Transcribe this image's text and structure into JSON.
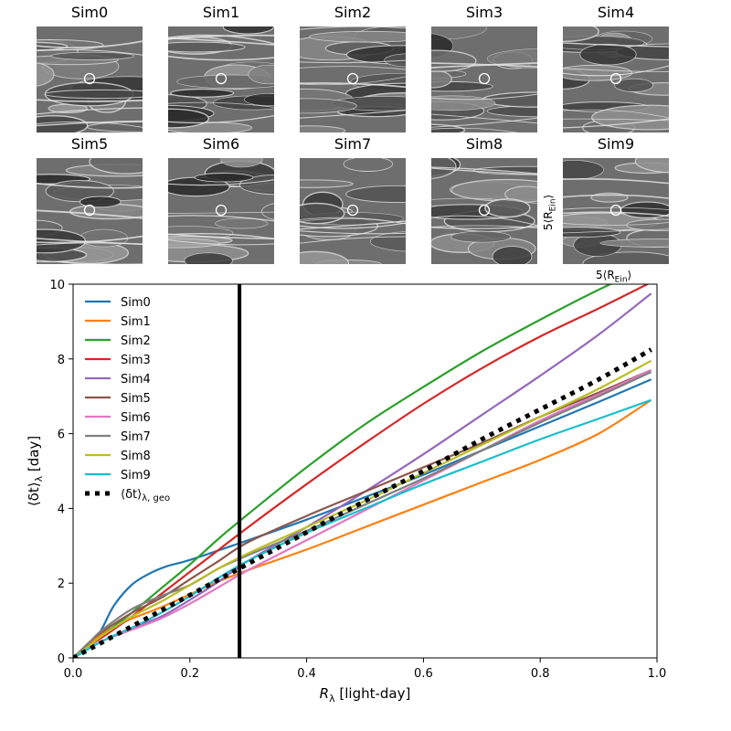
{
  "panels": {
    "titles": [
      "Sim0",
      "Sim1",
      "Sim2",
      "Sim3",
      "Sim4",
      "Sim5",
      "Sim6",
      "Sim7",
      "Sim8",
      "Sim9"
    ],
    "scale_vertical": "5⟨R",
    "scale_vertical_sub": "Ein",
    "scale_vertical_end": "⟩",
    "scale_horizontal": "5⟨R",
    "scale_horizontal_sub": "Ein",
    "scale_horizontal_end": "⟩"
  },
  "chart_data": {
    "type": "line",
    "xlabel_main": "R",
    "xlabel_sub": "λ",
    "xlabel_rest": " [light-day]",
    "ylabel_main": "⟨δt⟩",
    "ylabel_sub": "λ",
    "ylabel_rest": " [day]",
    "xlim": [
      0.0,
      1.0
    ],
    "ylim": [
      0,
      10
    ],
    "xticks": [
      "0.0",
      "0.2",
      "0.4",
      "0.6",
      "0.8",
      "1.0"
    ],
    "yticks": [
      "0",
      "2",
      "4",
      "6",
      "8",
      "10"
    ],
    "vline_x": 0.285,
    "legend_position": "top-left",
    "series": [
      {
        "name": "Sim0",
        "color": "#1f77b4",
        "x": [
          0,
          0.03,
          0.05,
          0.07,
          0.1,
          0.13,
          0.16,
          0.2,
          0.3,
          0.4,
          0.5,
          0.6,
          0.7,
          0.8,
          0.9,
          0.99
        ],
        "y": [
          0,
          0.3,
          0.8,
          1.4,
          1.95,
          2.25,
          2.45,
          2.62,
          3.15,
          3.7,
          4.3,
          4.9,
          5.55,
          6.2,
          6.85,
          7.45
        ]
      },
      {
        "name": "Sim1",
        "color": "#ff7f0e",
        "x": [
          0,
          0.03,
          0.05,
          0.08,
          0.1,
          0.15,
          0.2,
          0.25,
          0.3,
          0.4,
          0.5,
          0.6,
          0.7,
          0.8,
          0.9,
          0.99
        ],
        "y": [
          0,
          0.4,
          0.65,
          0.9,
          1.05,
          1.35,
          1.7,
          2.05,
          2.35,
          2.9,
          3.5,
          4.1,
          4.7,
          5.3,
          6.0,
          6.9
        ]
      },
      {
        "name": "Sim2",
        "color": "#2ca02c",
        "x": [
          0,
          0.03,
          0.05,
          0.1,
          0.15,
          0.2,
          0.25,
          0.3,
          0.4,
          0.5,
          0.6,
          0.7,
          0.8,
          0.9,
          0.97
        ],
        "y": [
          0,
          0.35,
          0.6,
          1.2,
          1.85,
          2.5,
          3.2,
          3.85,
          5.1,
          6.25,
          7.25,
          8.2,
          9.05,
          9.85,
          10.35
        ]
      },
      {
        "name": "Sim3",
        "color": "#d62728",
        "x": [
          0,
          0.03,
          0.05,
          0.1,
          0.15,
          0.2,
          0.25,
          0.3,
          0.4,
          0.5,
          0.6,
          0.7,
          0.8,
          0.9,
          0.99
        ],
        "y": [
          0,
          0.35,
          0.55,
          1.1,
          1.7,
          2.3,
          2.9,
          3.5,
          4.65,
          5.75,
          6.8,
          7.75,
          8.6,
          9.35,
          10.05
        ]
      },
      {
        "name": "Sim4",
        "color": "#9467bd",
        "x": [
          0,
          0.05,
          0.1,
          0.15,
          0.2,
          0.25,
          0.3,
          0.4,
          0.5,
          0.6,
          0.7,
          0.8,
          0.9,
          0.99
        ],
        "y": [
          0,
          0.45,
          0.8,
          1.1,
          1.55,
          2.05,
          2.6,
          3.5,
          4.45,
          5.45,
          6.5,
          7.55,
          8.65,
          9.75
        ]
      },
      {
        "name": "Sim5",
        "color": "#8c564b",
        "x": [
          0,
          0.03,
          0.05,
          0.1,
          0.15,
          0.2,
          0.25,
          0.3,
          0.4,
          0.5,
          0.6,
          0.7,
          0.8,
          0.9,
          0.99
        ],
        "y": [
          0,
          0.45,
          0.7,
          1.2,
          1.6,
          2.1,
          2.6,
          3.1,
          3.8,
          4.45,
          5.1,
          5.75,
          6.45,
          7.1,
          7.7
        ]
      },
      {
        "name": "Sim6",
        "color": "#e377c2",
        "x": [
          0,
          0.05,
          0.1,
          0.15,
          0.2,
          0.25,
          0.3,
          0.4,
          0.5,
          0.6,
          0.7,
          0.8,
          0.9,
          0.99
        ],
        "y": [
          0,
          0.45,
          0.75,
          1.05,
          1.45,
          1.9,
          2.35,
          3.15,
          3.95,
          4.75,
          5.55,
          6.35,
          7.05,
          7.7
        ]
      },
      {
        "name": "Sim7",
        "color": "#7f7f7f",
        "x": [
          0,
          0.03,
          0.05,
          0.1,
          0.15,
          0.2,
          0.25,
          0.3,
          0.4,
          0.5,
          0.6,
          0.7,
          0.8,
          0.9,
          0.99
        ],
        "y": [
          0,
          0.45,
          0.75,
          1.3,
          1.65,
          1.95,
          2.4,
          2.75,
          3.4,
          4.1,
          4.8,
          5.55,
          6.3,
          7.0,
          7.65
        ]
      },
      {
        "name": "Sim8",
        "color": "#bcbd22",
        "x": [
          0,
          0.03,
          0.05,
          0.1,
          0.15,
          0.2,
          0.25,
          0.3,
          0.4,
          0.5,
          0.6,
          0.7,
          0.8,
          0.9,
          0.99
        ],
        "y": [
          0,
          0.35,
          0.6,
          1.1,
          1.5,
          1.95,
          2.4,
          2.8,
          3.5,
          4.2,
          4.95,
          5.7,
          6.45,
          7.2,
          7.95
        ]
      },
      {
        "name": "Sim9",
        "color": "#17becf",
        "x": [
          0,
          0.05,
          0.1,
          0.15,
          0.2,
          0.25,
          0.3,
          0.4,
          0.5,
          0.6,
          0.7,
          0.8,
          0.9,
          0.99
        ],
        "y": [
          0,
          0.45,
          0.8,
          1.2,
          1.65,
          2.15,
          2.6,
          3.35,
          4.0,
          4.65,
          5.25,
          5.85,
          6.4,
          6.9
        ]
      }
    ],
    "geo_series": {
      "name_main": "⟨δt⟩",
      "name_sub": "λ, geo",
      "color": "#000000",
      "x": [
        0,
        0.1,
        0.2,
        0.3,
        0.4,
        0.5,
        0.6,
        0.7,
        0.8,
        0.9,
        0.99
      ],
      "y": [
        0,
        0.84,
        1.68,
        2.52,
        3.36,
        4.2,
        5.0,
        5.85,
        6.65,
        7.45,
        8.25
      ]
    }
  }
}
